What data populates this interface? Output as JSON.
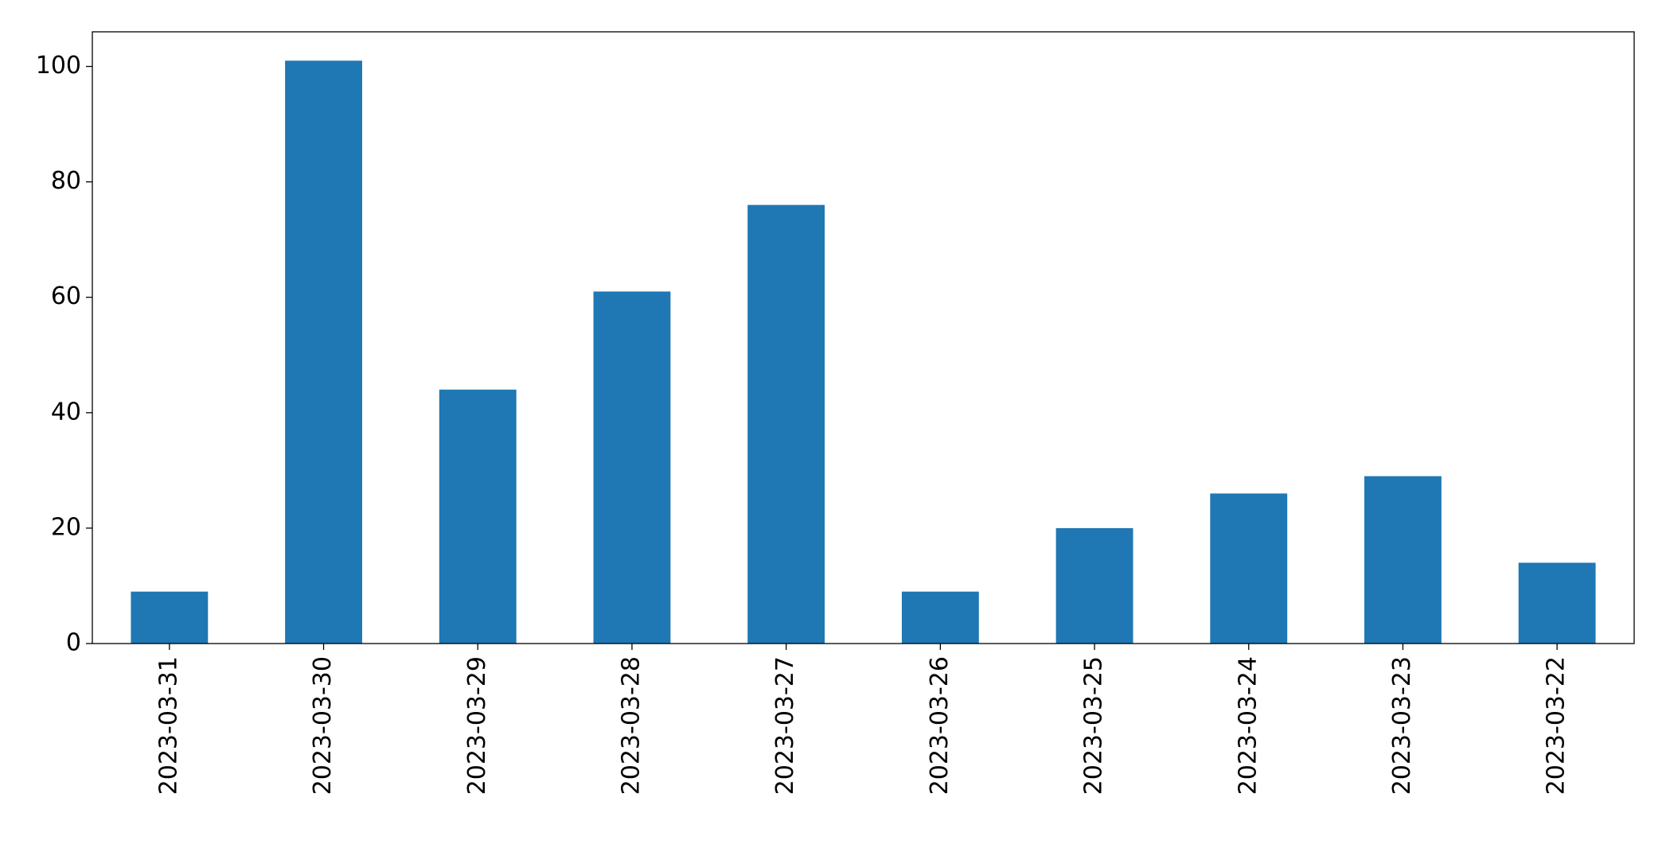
{
  "chart_data": {
    "type": "bar",
    "categories": [
      "2023-03-31",
      "2023-03-30",
      "2023-03-29",
      "2023-03-28",
      "2023-03-27",
      "2023-03-26",
      "2023-03-25",
      "2023-03-24",
      "2023-03-23",
      "2023-03-22"
    ],
    "values": [
      9,
      101,
      44,
      61,
      76,
      9,
      20,
      26,
      29,
      14
    ],
    "color": "#1f77b4",
    "ylim": [
      0,
      106
    ],
    "yticks": [
      0,
      20,
      40,
      60,
      80,
      100
    ],
    "grid": false
  }
}
